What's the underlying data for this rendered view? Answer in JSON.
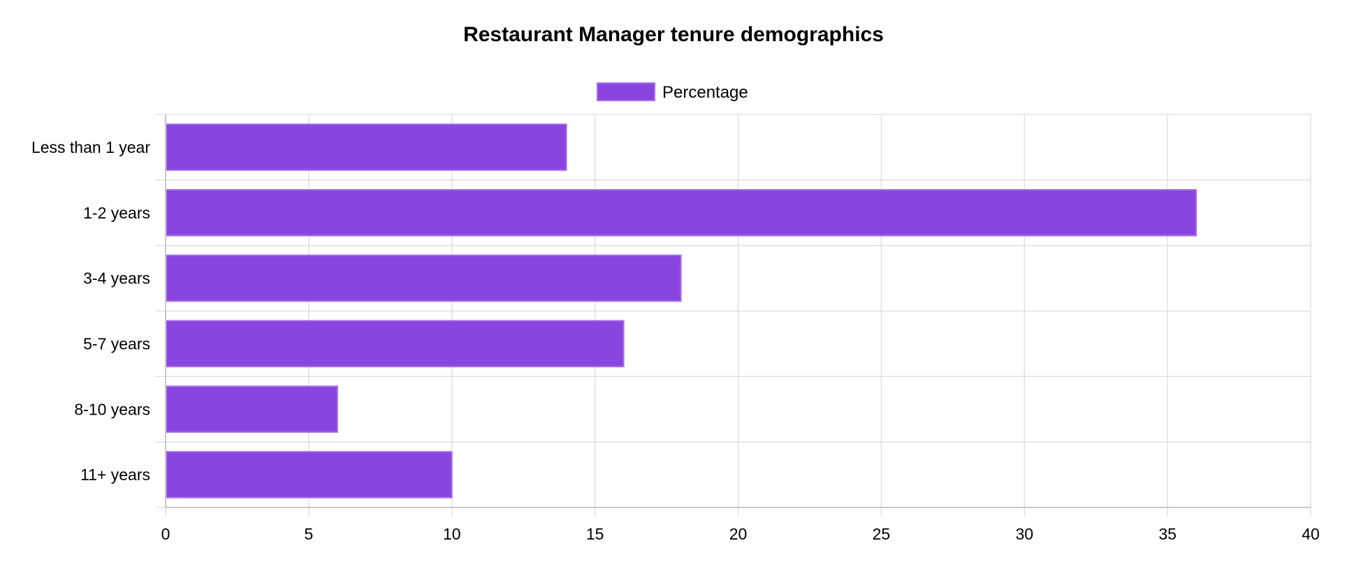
{
  "chart_data": {
    "type": "bar",
    "orientation": "horizontal",
    "title": "Restaurant Manager tenure demographics",
    "categories": [
      "Less than 1 year",
      "1-2 years",
      "3-4 years",
      "5-7 years",
      "8-10 years",
      "11+ years"
    ],
    "series": [
      {
        "name": "Percentage",
        "values": [
          14,
          36,
          18,
          16,
          6,
          10
        ],
        "color": "#8a45e0",
        "border_color": "#a66ee8"
      }
    ],
    "xlim": [
      0,
      40
    ],
    "x_ticks": [
      0,
      5,
      10,
      15,
      20,
      25,
      30,
      35,
      40
    ],
    "xlabel": "",
    "ylabel": "",
    "grid": true,
    "legend_position": "top-center"
  }
}
